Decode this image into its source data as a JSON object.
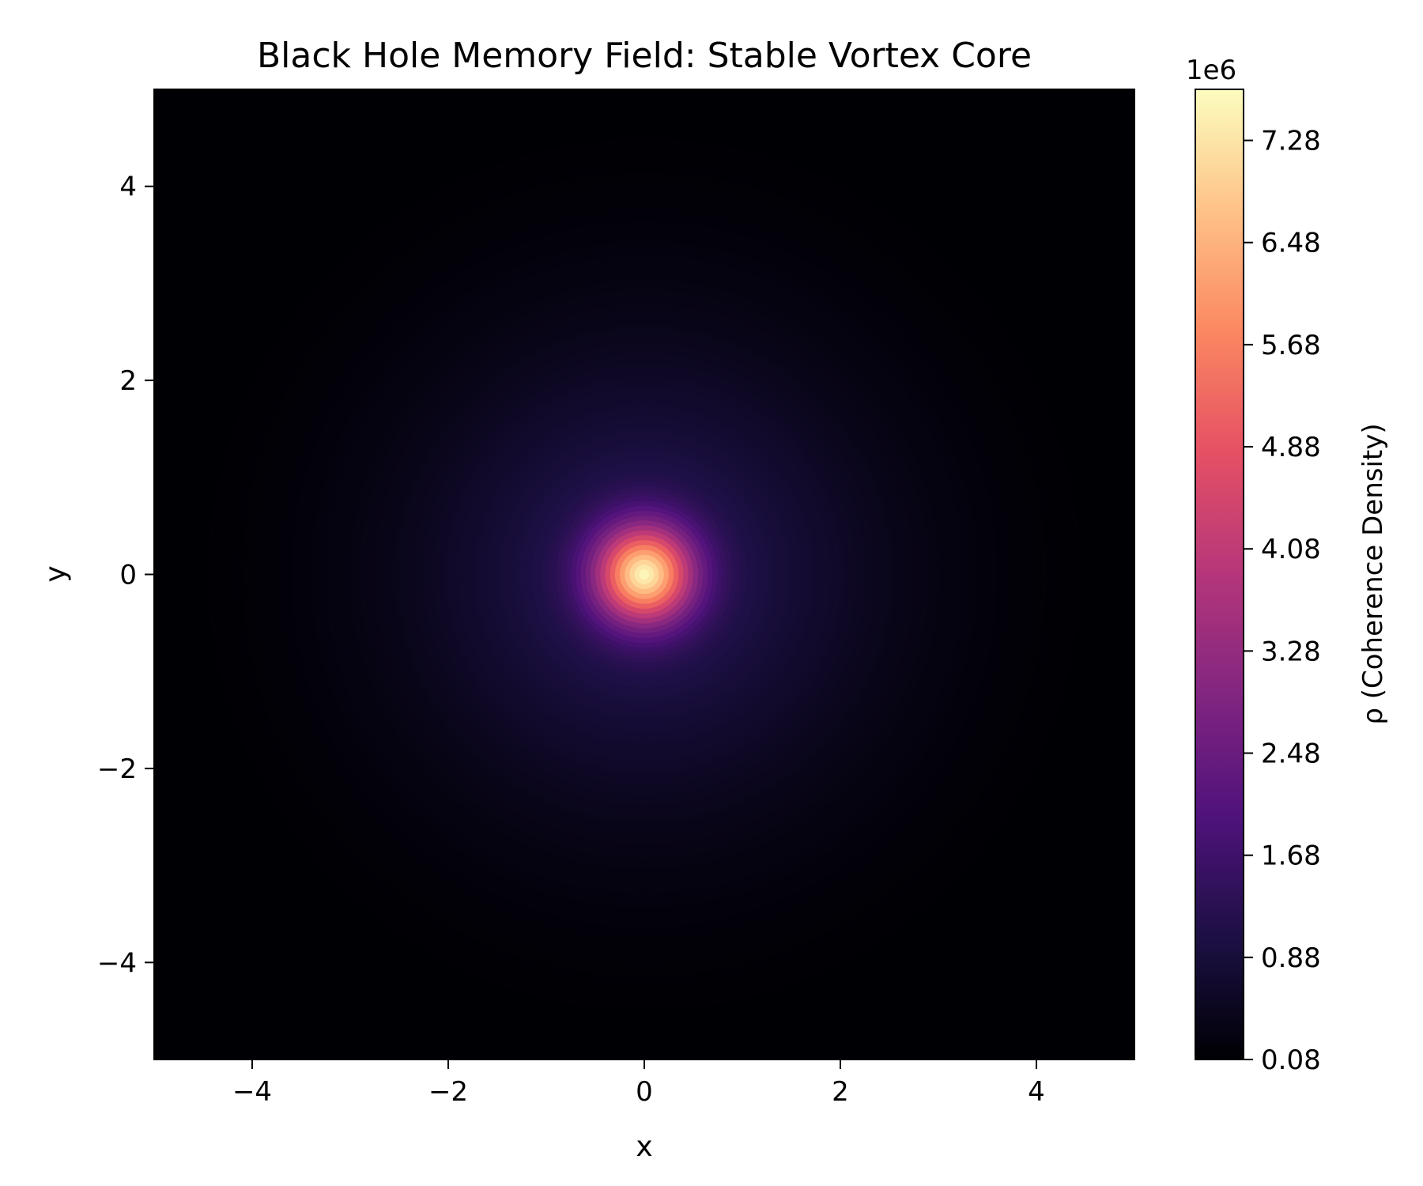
{
  "chart_data": {
    "type": "heatmap",
    "title": "Black Hole Memory Field: Stable Vortex Core",
    "xlabel": "x",
    "ylabel": "y",
    "xlim": [
      -5,
      5
    ],
    "ylim": [
      -5,
      5
    ],
    "x_ticks": [
      -4,
      -2,
      0,
      2,
      4
    ],
    "x_tick_labels": [
      "−4",
      "−2",
      "0",
      "2",
      "4"
    ],
    "y_ticks": [
      -4,
      -2,
      0,
      2,
      4
    ],
    "y_tick_labels": [
      "−4",
      "−2",
      "0",
      "2",
      "4"
    ],
    "field": {
      "shape": "radial",
      "center": [
        0,
        0
      ],
      "peak_value": 7660000,
      "core_radius": 0.35,
      "tail_radius": 4.9,
      "levels": 100
    },
    "grid": false,
    "colormap": {
      "name": "magma",
      "stops": [
        "#000004",
        "#1c1044",
        "#4f127b",
        "#812581",
        "#b5367a",
        "#e55064",
        "#fb8761",
        "#fec287",
        "#fcfdbf"
      ]
    },
    "colorbar": {
      "label": "ρ (Coherence Density)",
      "multiplier": "1e6",
      "range": [
        0.08,
        7.68
      ],
      "ticks": [
        0.08,
        0.88,
        1.68,
        2.48,
        3.28,
        4.08,
        4.88,
        5.68,
        6.48,
        7.28
      ],
      "tick_labels": [
        "0.08",
        "0.88",
        "1.68",
        "2.48",
        "3.28",
        "4.08",
        "4.88",
        "5.68",
        "6.48",
        "7.28"
      ],
      "placement": "right"
    }
  }
}
